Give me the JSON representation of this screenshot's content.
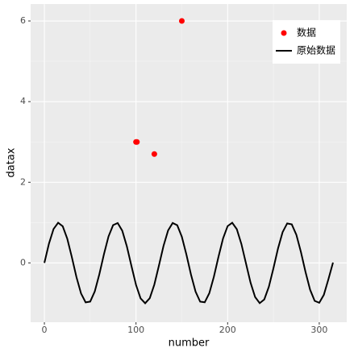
{
  "chart_data": {
    "type": "scatter",
    "x_label": "number",
    "y_label": "datax",
    "xlim": [
      -15,
      330
    ],
    "ylim": [
      -1.47,
      6.42
    ],
    "xticks": [
      0,
      100,
      200,
      300
    ],
    "yticks": [
      0,
      2,
      4,
      6
    ],
    "grid": true,
    "legend": "top-right",
    "series": [
      {
        "name": "数据",
        "type": "point",
        "color": "#ff0000",
        "x": [
          100,
          101,
          120,
          150
        ],
        "values": [
          3,
          3,
          2.7,
          6
        ]
      },
      {
        "name": "原始数据",
        "type": "line",
        "color": "#000000",
        "x": [
          0,
          5,
          10,
          15,
          20,
          25,
          30,
          35,
          40,
          45,
          50,
          55,
          60,
          65,
          70,
          75,
          80,
          85,
          90,
          95,
          100,
          105,
          110,
          115,
          120,
          125,
          130,
          135,
          140,
          145,
          150,
          155,
          160,
          165,
          170,
          175,
          180,
          185,
          190,
          195,
          200,
          205,
          210,
          215,
          220,
          225,
          230,
          235,
          240,
          245,
          250,
          255,
          260,
          265,
          270,
          275,
          280,
          285,
          290,
          295,
          300,
          305,
          310,
          315
        ],
        "values": [
          0,
          0.479,
          0.841,
          0.997,
          0.909,
          0.598,
          0.141,
          -0.351,
          -0.757,
          -0.978,
          -0.959,
          -0.706,
          -0.279,
          0.215,
          0.657,
          0.938,
          0.989,
          0.798,
          0.412,
          -0.075,
          -0.544,
          -0.88,
          -1,
          -0.875,
          -0.537,
          -0.066,
          0.42,
          0.804,
          0.991,
          0.935,
          0.65,
          0.207,
          -0.288,
          -0.712,
          -0.961,
          -0.976,
          -0.751,
          -0.342,
          0.15,
          0.606,
          0.913,
          0.996,
          0.837,
          0.471,
          -0.009,
          -0.488,
          -0.846,
          -0.998,
          -0.906,
          -0.59,
          -0.132,
          0.359,
          0.763,
          0.98,
          0.956,
          0.699,
          0.271,
          -0.224,
          -0.664,
          -0.941,
          -0.988,
          -0.792,
          -0.404,
          0.008
        ]
      }
    ]
  }
}
